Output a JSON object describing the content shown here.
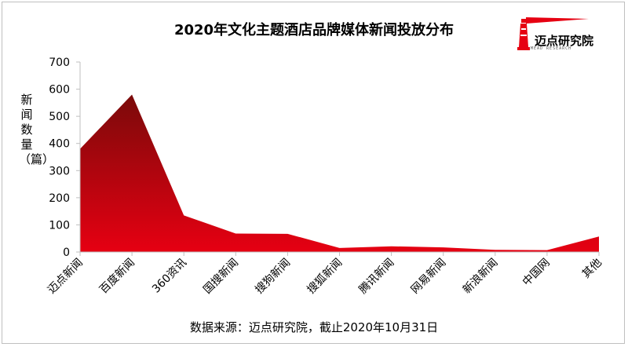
{
  "chart_data": {
    "type": "area",
    "title": "2020年文化主题酒店品牌媒体新闻投放分布",
    "ylabel": "新闻数量（篇）",
    "xlabel": "",
    "categories": [
      "迈点新闻",
      "百度新闻",
      "360资讯",
      "国搜新闻",
      "搜狗新闻",
      "搜狐新闻",
      "腾讯新闻",
      "网易新闻",
      "新浪新闻",
      "中国网",
      "其他"
    ],
    "values": [
      380,
      580,
      135,
      68,
      67,
      15,
      21,
      17,
      8,
      7,
      57
    ],
    "ylim": [
      0,
      700
    ],
    "yticks": [
      0,
      100,
      200,
      300,
      400,
      500,
      600,
      700
    ],
    "grid": false,
    "legend": "none",
    "colors": {
      "area_top": "#7a0a0a",
      "area_bottom": "#e60012"
    }
  },
  "brand": {
    "name": "迈点研究院",
    "sub": "MEAD RESEARCH"
  },
  "source": "数据来源：迈点研究院，截止2020年10月31日"
}
